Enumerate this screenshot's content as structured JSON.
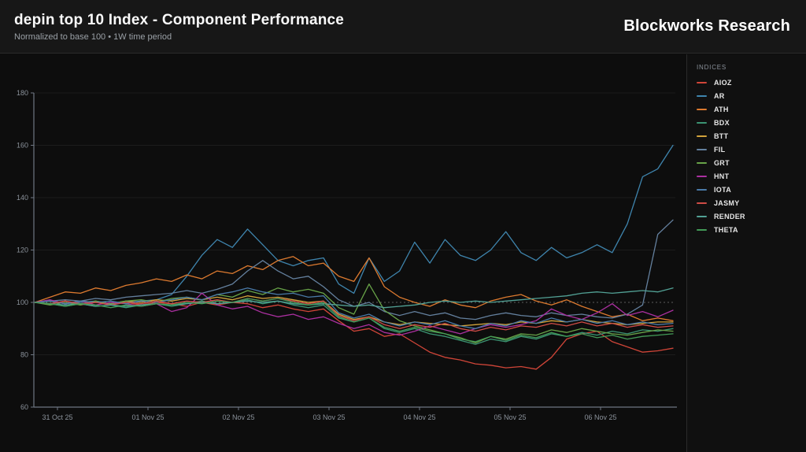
{
  "header": {
    "title": "depin top 10 Index - Component Performance",
    "subtitle": "Normalized to base 100 • 1W time period",
    "brand": "Blockworks Research"
  },
  "legend": {
    "title": "INDICES"
  },
  "chart_data": {
    "type": "line",
    "title": "depin top 10 Index - Component Performance",
    "normalized_base": 100,
    "time_period": "1W",
    "ylim": [
      60,
      180
    ],
    "yticks": [
      60,
      80,
      100,
      120,
      140,
      160,
      180
    ],
    "baseline": {
      "value": 100,
      "style": "dashed"
    },
    "grid": "horizontal",
    "legend_position": "right",
    "x_tick_labels": [
      "31 Oct 25",
      "01 Nov 25",
      "02 Nov 25",
      "03 Nov 25",
      "04 Nov 25",
      "05 Nov 25",
      "06 Nov 25"
    ],
    "x_tick_days": [
      0,
      1,
      2,
      3,
      4,
      5,
      6
    ],
    "x_days": [
      -0.25,
      -0.082,
      0.086,
      0.254,
      0.421,
      0.589,
      0.757,
      0.925,
      1.093,
      1.261,
      1.429,
      1.596,
      1.764,
      1.932,
      2.1,
      2.268,
      2.436,
      2.604,
      2.771,
      2.939,
      3.107,
      3.275,
      3.443,
      3.611,
      3.779,
      3.946,
      4.114,
      4.282,
      4.45,
      4.618,
      4.786,
      4.954,
      5.121,
      5.289,
      5.457,
      5.625,
      5.793,
      5.961,
      6.129,
      6.296,
      6.464,
      6.632,
      6.8
    ],
    "series": [
      {
        "name": "AIOZ",
        "color": "#d04538",
        "values": [
          100,
          99.5,
          100.5,
          99,
          100,
          99.5,
          100,
          99,
          100,
          99.5,
          98.5,
          100,
          99,
          100,
          99.5,
          98,
          99,
          97.5,
          96.5,
          97.5,
          93,
          89,
          90,
          87,
          88,
          84.5,
          81,
          79,
          78,
          76.5,
          76,
          75,
          75.5,
          74.5,
          79,
          86,
          88,
          89,
          85,
          83,
          81,
          81.5,
          82.5
        ]
      },
      {
        "name": "AR",
        "color": "#3f85ae",
        "values": [
          100,
          100.5,
          99.5,
          100,
          100.5,
          99.5,
          100,
          100.5,
          101,
          103,
          110,
          118,
          124,
          121,
          128,
          122,
          116,
          114,
          116,
          117,
          107,
          103.5,
          117,
          108,
          112,
          123,
          115,
          124,
          118,
          116,
          120,
          127,
          119,
          116,
          121,
          117,
          119,
          122,
          119,
          130,
          148,
          151,
          160
        ]
      },
      {
        "name": "ATH",
        "color": "#dd7a2f",
        "values": [
          100,
          102,
          104,
          103.5,
          105.5,
          104.5,
          106.5,
          107.5,
          109,
          108,
          110.5,
          109,
          112,
          111,
          114,
          112.5,
          116,
          117.5,
          114,
          115,
          110,
          108,
          117,
          106,
          102,
          100,
          98.5,
          101,
          99,
          98,
          100.5,
          102,
          103,
          100.5,
          99,
          101,
          98.5,
          96.5,
          94.5,
          95.5,
          93,
          94,
          93
        ]
      },
      {
        "name": "BDX",
        "color": "#3b9473",
        "values": [
          100,
          99.5,
          98.5,
          99.5,
          98.5,
          99,
          98,
          99,
          99.5,
          98.5,
          99.5,
          100.5,
          99.5,
          100,
          101,
          99.5,
          100.5,
          99,
          98,
          99,
          94,
          92.5,
          94,
          90,
          88.5,
          90,
          88,
          87,
          85.5,
          84,
          86,
          85,
          87,
          86,
          88,
          87,
          88.5,
          87.5,
          89,
          88,
          89.5,
          89,
          90
        ]
      },
      {
        "name": "BTT",
        "color": "#d2a33c",
        "values": [
          100,
          100.5,
          99.5,
          100.5,
          100,
          99.5,
          100.5,
          100,
          101,
          100.5,
          101.5,
          101,
          102,
          101,
          102.5,
          101.5,
          102,
          101,
          100,
          100.5,
          95.5,
          93.5,
          94.5,
          92.5,
          91.5,
          92.5,
          92,
          91.5,
          91,
          91.5,
          92,
          91.5,
          92.5,
          92,
          93,
          92.5,
          93.5,
          92.5,
          92,
          91.5,
          92,
          92.5,
          92.5
        ]
      },
      {
        "name": "FIL",
        "color": "#64809e",
        "values": [
          100,
          100.5,
          101,
          100.5,
          101.5,
          101,
          102,
          102.5,
          103,
          103.5,
          104.5,
          103.5,
          105,
          107,
          112,
          116,
          112,
          109,
          110,
          106,
          101,
          98.5,
          100,
          96.5,
          95,
          96.5,
          95,
          96,
          94,
          93.5,
          95,
          96,
          95,
          94.5,
          96,
          95,
          95.5,
          94.5,
          94,
          95.5,
          99,
          126,
          131.5
        ]
      },
      {
        "name": "GRT",
        "color": "#68a348",
        "values": [
          100,
          99,
          100,
          99,
          100.5,
          99.5,
          100.5,
          101,
          100,
          101.5,
          102,
          101,
          103,
          102,
          104.5,
          103,
          105.5,
          104,
          105,
          103.5,
          98,
          95.5,
          107,
          97,
          93,
          91,
          89.5,
          88,
          86.5,
          84.5,
          87,
          86,
          88,
          87.5,
          89.5,
          88.5,
          90,
          89,
          88,
          87.5,
          88.5,
          89.5,
          89
        ]
      },
      {
        "name": "HNT",
        "color": "#ab30a0",
        "values": [
          100,
          101,
          99.5,
          100.5,
          99,
          100,
          99.5,
          98.5,
          99.5,
          96.5,
          98,
          103.5,
          99,
          97.5,
          98.5,
          96,
          94.5,
          95.5,
          93.5,
          94.5,
          92,
          90,
          91.5,
          88.5,
          87.5,
          89,
          91,
          89.5,
          88,
          90,
          91.5,
          90.5,
          91.5,
          93,
          97.5,
          95,
          93.5,
          96,
          99.5,
          95,
          96.5,
          94.5,
          97
        ]
      },
      {
        "name": "IOTA",
        "color": "#4a7aa8",
        "values": [
          100,
          100.5,
          99.5,
          100.5,
          100,
          100.5,
          99.5,
          100.5,
          100,
          101,
          102,
          101,
          103,
          104,
          105.5,
          104,
          103,
          103.5,
          102,
          102.5,
          96,
          94,
          95.5,
          92.5,
          91,
          92.5,
          91.5,
          93,
          91,
          90,
          92,
          91,
          93,
          92,
          94,
          92.5,
          93.5,
          92,
          93,
          91.5,
          92.5,
          91.5,
          92
        ]
      },
      {
        "name": "JASMY",
        "color": "#cf4c46",
        "values": [
          100,
          99.5,
          100.5,
          99.5,
          100,
          99,
          100,
          99.5,
          100.5,
          99.5,
          100.5,
          100,
          101,
          100,
          101.5,
          100.5,
          101.5,
          100.5,
          99.5,
          100.5,
          95,
          93,
          94.5,
          91.5,
          90,
          91.5,
          90.5,
          92,
          90,
          89,
          90.5,
          89.5,
          91,
          90.5,
          92,
          91,
          92.5,
          91,
          92,
          90.5,
          91.5,
          90.5,
          91
        ]
      },
      {
        "name": "RENDER",
        "color": "#52a195",
        "values": [
          100,
          99.5,
          99,
          99.5,
          98.5,
          99,
          98.5,
          99,
          99.5,
          99,
          99.5,
          100,
          99.5,
          100,
          100.5,
          100,
          100.5,
          99.5,
          99,
          99.5,
          99,
          98.5,
          99,
          98,
          98.5,
          99,
          100,
          100.5,
          100,
          100.5,
          100,
          100.5,
          101,
          101.5,
          102,
          102.5,
          103.5,
          104,
          103.5,
          104,
          104.5,
          104,
          105.5
        ]
      },
      {
        "name": "THETA",
        "color": "#429a57",
        "values": [
          100,
          99.5,
          98.5,
          99.5,
          99,
          98,
          99,
          98.5,
          99.5,
          99,
          100,
          99.5,
          100.5,
          100,
          101.5,
          100.5,
          101.5,
          100,
          99,
          100,
          94.5,
          92.5,
          94,
          90.5,
          89,
          90.5,
          89,
          88,
          86,
          85,
          87,
          85.5,
          87.5,
          86.5,
          88.5,
          87,
          88,
          86.5,
          87.5,
          86,
          87,
          87.5,
          88
        ]
      }
    ]
  }
}
